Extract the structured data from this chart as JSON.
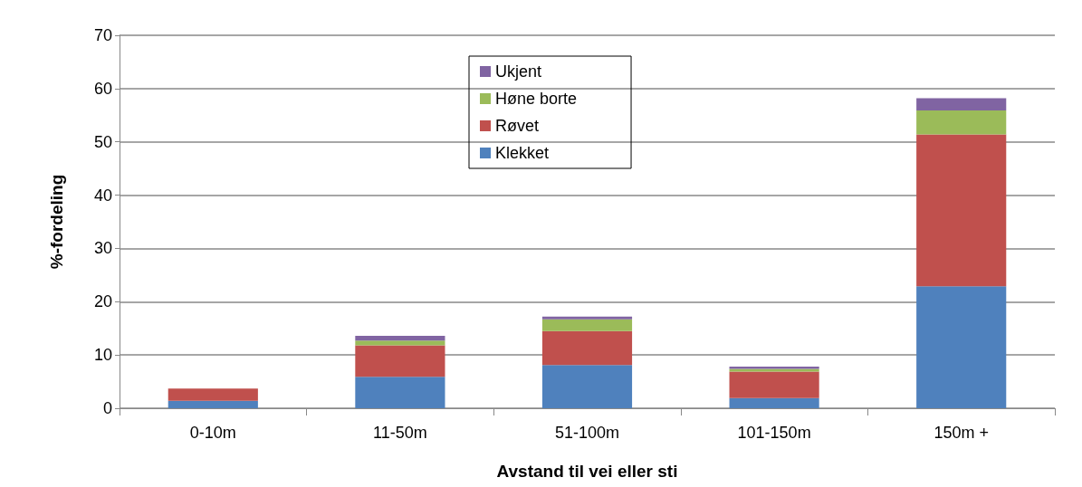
{
  "chart_data": {
    "type": "bar",
    "stacked": true,
    "xlabel": "Avstand til vei eller sti",
    "ylabel": "%-fordeling",
    "categories": [
      "0-10m",
      "11-50m",
      "51-100m",
      "101-150m",
      "150m +"
    ],
    "series": [
      {
        "name": "Klekket",
        "color": "#4f81bd",
        "values": [
          1.4,
          5.9,
          8.1,
          1.9,
          22.9
        ]
      },
      {
        "name": "Røvet",
        "color": "#c0504d",
        "values": [
          2.3,
          5.9,
          6.4,
          5,
          28.5
        ]
      },
      {
        "name": "Høne borte",
        "color": "#9bbb59",
        "values": [
          0,
          0.9,
          2.2,
          0.5,
          4.5
        ]
      },
      {
        "name": "Ukjent",
        "color": "#8064a2",
        "values": [
          0,
          0.9,
          0.5,
          0.4,
          2.3
        ]
      }
    ],
    "ylim": [
      0,
      70
    ],
    "yticks": [
      0,
      10,
      20,
      30,
      40,
      50,
      60,
      70
    ],
    "grid": "y",
    "legend": "top"
  }
}
